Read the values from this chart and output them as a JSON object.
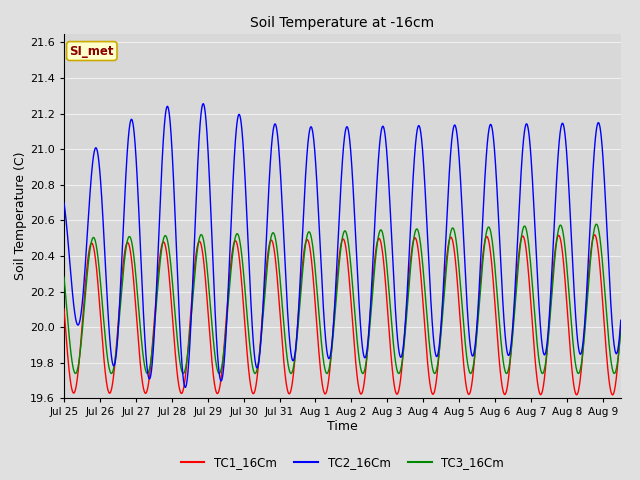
{
  "title": "Soil Temperature at -16cm",
  "xlabel": "Time",
  "ylabel": "Soil Temperature (C)",
  "ylim": [
    19.6,
    21.65
  ],
  "xlim_days": [
    0,
    15.5
  ],
  "background_color": "#e0e0e0",
  "plot_bg_color": "#d8d8d8",
  "grid_color": "#f0f0f0",
  "annotation_text": "SI_met",
  "annotation_bg": "#ffffcc",
  "annotation_border": "#ccaa00",
  "annotation_text_color": "#8b0000",
  "legend_entries": [
    "TC1_16Cm",
    "TC2_16Cm",
    "TC3_16Cm"
  ],
  "line_colors": [
    "#ff0000",
    "#0000ff",
    "#008800"
  ],
  "x_tick_labels": [
    "Jul 25",
    "Jul 26",
    "Jul 27",
    "Jul 28",
    "Jul 29",
    "Jul 30",
    "Jul 31",
    "Aug 1",
    "Aug 2",
    "Aug 3",
    "Aug 4",
    "Aug 5",
    "Aug 6",
    "Aug 7",
    "Aug 8",
    "Aug 9"
  ],
  "x_tick_positions": [
    0,
    1,
    2,
    3,
    4,
    5,
    6,
    7,
    8,
    9,
    10,
    11,
    12,
    13,
    14,
    15
  ]
}
